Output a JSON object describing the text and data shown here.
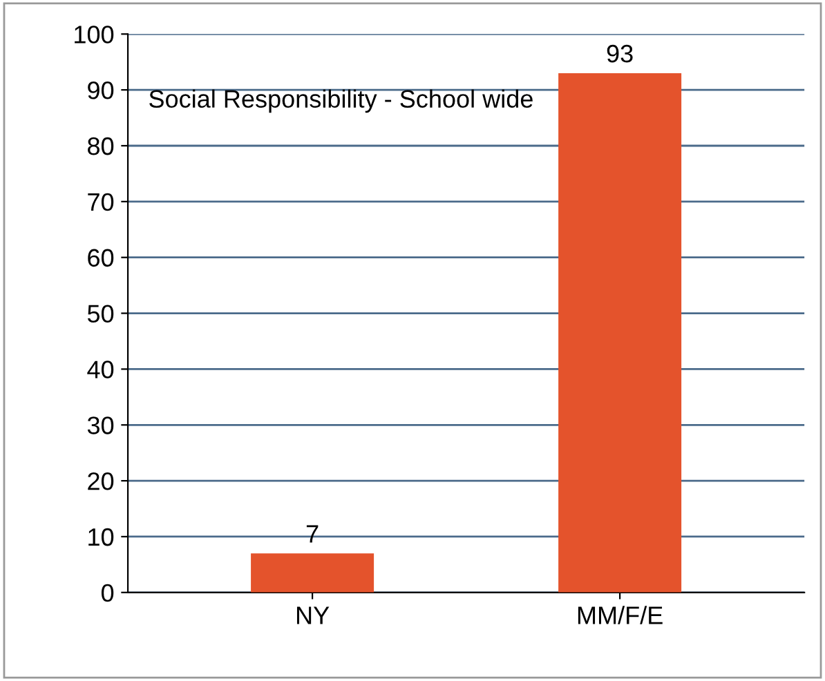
{
  "chart_data": {
    "type": "bar",
    "title": "Social Responsibility - School wide",
    "categories": [
      "NY",
      "MM/F/E"
    ],
    "values": [
      7,
      93
    ],
    "color": "#e4532c",
    "ylim": [
      0,
      100
    ],
    "yticks": [
      0,
      10,
      20,
      30,
      40,
      50,
      60,
      70,
      80,
      90,
      100
    ],
    "grid": "y",
    "data_labels": true
  }
}
